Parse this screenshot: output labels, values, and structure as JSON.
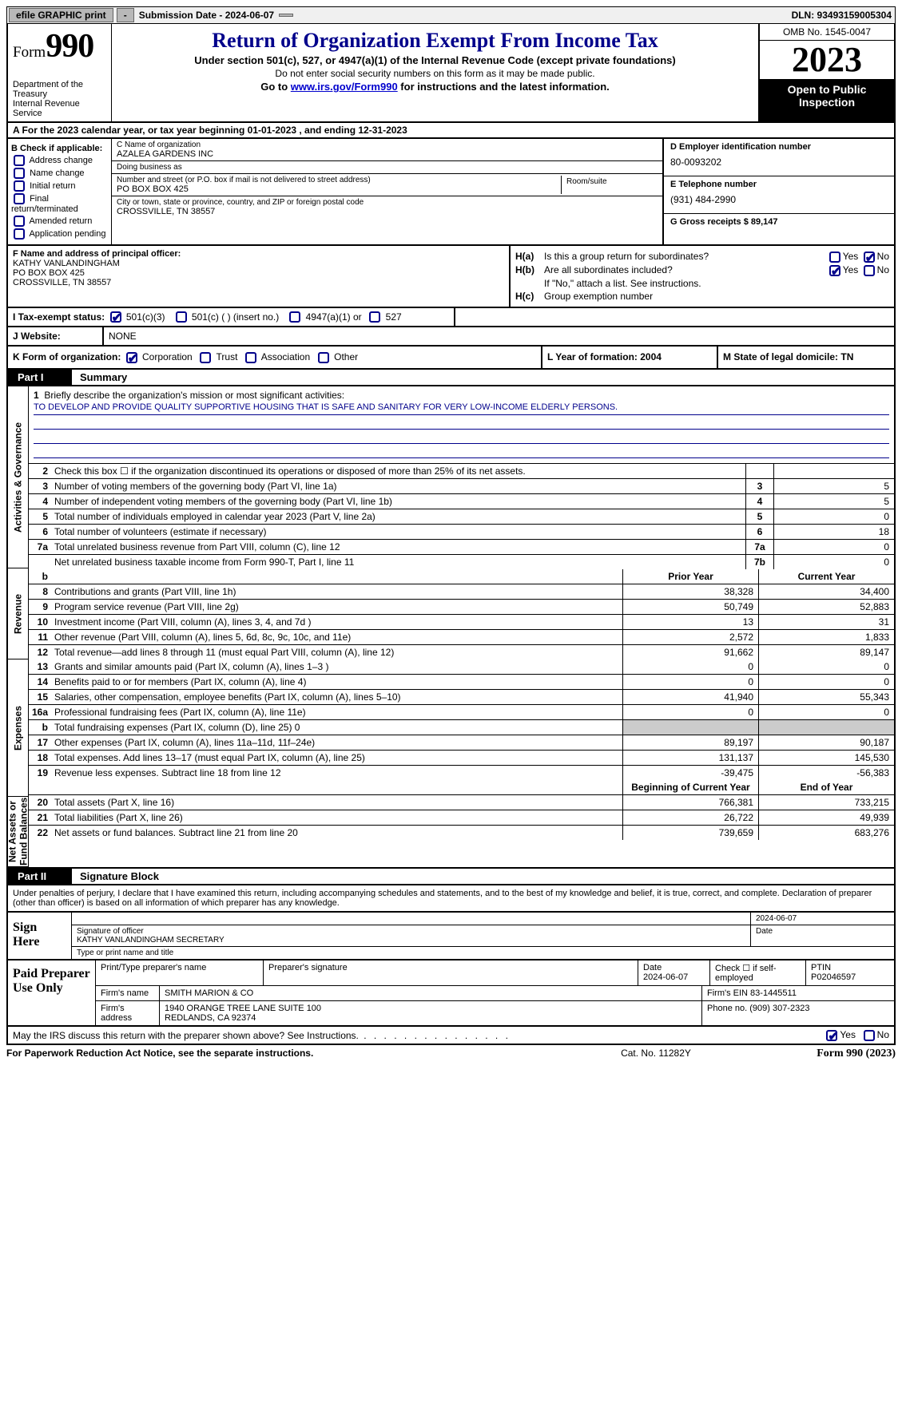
{
  "topbar": {
    "efile": "efile GRAPHIC print",
    "print": "-",
    "submission_label": "Submission Date - 2024-06-07",
    "dln_label": "DLN: 93493159005304"
  },
  "header": {
    "form_word": "Form",
    "form_no": "990",
    "dept": "Department of the Treasury",
    "irs": "Internal Revenue Service",
    "title": "Return of Organization Exempt From Income Tax",
    "sub": "Under section 501(c), 527, or 4947(a)(1) of the Internal Revenue Code (except private foundations)",
    "ssn": "Do not enter social security numbers on this form as it may be made public.",
    "goto_pre": "Go to ",
    "goto_link": "www.irs.gov/Form990",
    "goto_post": " for instructions and the latest information.",
    "omb": "OMB No. 1545-0047",
    "year": "2023",
    "inspection": "Open to Public Inspection"
  },
  "line_a": "A For the 2023 calendar year, or tax year beginning 01-01-2023     , and ending 12-31-2023",
  "box_b": {
    "hdr": "B Check if applicable:",
    "items": [
      "Address change",
      "Name change",
      "Initial return",
      "Final return/terminated",
      "Amended return",
      "Application pending"
    ]
  },
  "box_c": {
    "name_lbl": "C Name of organization",
    "name": "AZALEA GARDENS INC",
    "dba_lbl": "Doing business as",
    "dba": "",
    "addr_lbl": "Number and street (or P.O. box if mail is not delivered to street address)",
    "addr": "PO BOX BOX 425",
    "room_lbl": "Room/suite",
    "city_lbl": "City or town, state or province, country, and ZIP or foreign postal code",
    "city": "CROSSVILLE, TN  38557"
  },
  "box_d": {
    "ein_lbl": "D Employer identification number",
    "ein": "80-0093202",
    "tel_lbl": "E Telephone number",
    "tel": "(931) 484-2990",
    "gross_lbl": "G Gross receipts $ 89,147"
  },
  "box_f": {
    "lbl": "F  Name and address of principal officer:",
    "name": "KATHY VANLANDINGHAM",
    "addr": "PO BOX BOX 425",
    "city": "CROSSVILLE, TN  38557"
  },
  "box_h": {
    "ha_lbl": "H(a)",
    "ha_txt": "Is this a group return for subordinates?",
    "hb_lbl": "H(b)",
    "hb_txt": "Are all subordinates included?",
    "hb_note": "If \"No,\" attach a list. See instructions.",
    "hc_lbl": "H(c)",
    "hc_txt": "Group exemption number",
    "yes": "Yes",
    "no": "No"
  },
  "row_i": {
    "lbl": "I  Tax-exempt status:",
    "opts": [
      "501(c)(3)",
      "501(c) (  ) (insert no.)",
      "4947(a)(1) or",
      "527"
    ]
  },
  "row_j": {
    "lbl": "J  Website:",
    "val": "NONE"
  },
  "row_k": {
    "lbl": "K Form of organization:",
    "opts": [
      "Corporation",
      "Trust",
      "Association",
      "Other"
    ]
  },
  "row_l": {
    "lbl": "L Year of formation: 2004"
  },
  "row_m": {
    "lbl": "M State of legal domicile: TN"
  },
  "part1": {
    "tag": "Part I",
    "title": "Summary"
  },
  "vtab": {
    "gov": "Activities & Governance",
    "rev": "Revenue",
    "exp": "Expenses",
    "net": "Net Assets or Fund Balances"
  },
  "mission": {
    "n": "1",
    "lbl": "Briefly describe the organization's mission or most significant activities:",
    "txt": "TO DEVELOP AND PROVIDE QUALITY SUPPORTIVE HOUSING THAT IS SAFE AND SANITARY FOR VERY LOW-INCOME ELDERLY PERSONS."
  },
  "gov_rows": [
    {
      "n": "2",
      "d": "Check this box ☐ if the organization discontinued its operations or disposed of more than 25% of its net assets.",
      "b": "",
      "v": ""
    },
    {
      "n": "3",
      "d": "Number of voting members of the governing body (Part VI, line 1a)",
      "b": "3",
      "v": "5"
    },
    {
      "n": "4",
      "d": "Number of independent voting members of the governing body (Part VI, line 1b)",
      "b": "4",
      "v": "5"
    },
    {
      "n": "5",
      "d": "Total number of individuals employed in calendar year 2023 (Part V, line 2a)",
      "b": "5",
      "v": "0"
    },
    {
      "n": "6",
      "d": "Total number of volunteers (estimate if necessary)",
      "b": "6",
      "v": "18"
    },
    {
      "n": "7a",
      "d": "Total unrelated business revenue from Part VIII, column (C), line 12",
      "b": "7a",
      "v": "0"
    },
    {
      "n": "",
      "d": "Net unrelated business taxable income from Form 990-T, Part I, line 11",
      "b": "7b",
      "v": "0"
    }
  ],
  "col_hdr": {
    "py": "Prior Year",
    "cy": "Current Year"
  },
  "rev_rows": [
    {
      "n": "8",
      "d": "Contributions and grants (Part VIII, line 1h)",
      "py": "38,328",
      "cy": "34,400"
    },
    {
      "n": "9",
      "d": "Program service revenue (Part VIII, line 2g)",
      "py": "50,749",
      "cy": "52,883"
    },
    {
      "n": "10",
      "d": "Investment income (Part VIII, column (A), lines 3, 4, and 7d )",
      "py": "13",
      "cy": "31"
    },
    {
      "n": "11",
      "d": "Other revenue (Part VIII, column (A), lines 5, 6d, 8c, 9c, 10c, and 11e)",
      "py": "2,572",
      "cy": "1,833"
    },
    {
      "n": "12",
      "d": "Total revenue—add lines 8 through 11 (must equal Part VIII, column (A), line 12)",
      "py": "91,662",
      "cy": "89,147"
    }
  ],
  "exp_rows": [
    {
      "n": "13",
      "d": "Grants and similar amounts paid (Part IX, column (A), lines 1–3 )",
      "py": "0",
      "cy": "0"
    },
    {
      "n": "14",
      "d": "Benefits paid to or for members (Part IX, column (A), line 4)",
      "py": "0",
      "cy": "0"
    },
    {
      "n": "15",
      "d": "Salaries, other compensation, employee benefits (Part IX, column (A), lines 5–10)",
      "py": "41,940",
      "cy": "55,343"
    },
    {
      "n": "16a",
      "d": "Professional fundraising fees (Part IX, column (A), line 11e)",
      "py": "0",
      "cy": "0"
    },
    {
      "n": "b",
      "d": "Total fundraising expenses (Part IX, column (D), line 25) 0",
      "py": "GRAY",
      "cy": "GRAY"
    },
    {
      "n": "17",
      "d": "Other expenses (Part IX, column (A), lines 11a–11d, 11f–24e)",
      "py": "89,197",
      "cy": "90,187"
    },
    {
      "n": "18",
      "d": "Total expenses. Add lines 13–17 (must equal Part IX, column (A), line 25)",
      "py": "131,137",
      "cy": "145,530"
    },
    {
      "n": "19",
      "d": "Revenue less expenses. Subtract line 18 from line 12",
      "py": "-39,475",
      "cy": "-56,383"
    }
  ],
  "net_hdr": {
    "py": "Beginning of Current Year",
    "cy": "End of Year"
  },
  "net_rows": [
    {
      "n": "20",
      "d": "Total assets (Part X, line 16)",
      "py": "766,381",
      "cy": "733,215"
    },
    {
      "n": "21",
      "d": "Total liabilities (Part X, line 26)",
      "py": "26,722",
      "cy": "49,939"
    },
    {
      "n": "22",
      "d": "Net assets or fund balances. Subtract line 21 from line 20",
      "py": "739,659",
      "cy": "683,276"
    }
  ],
  "part2": {
    "tag": "Part II",
    "title": "Signature Block"
  },
  "perjury": "Under penalties of perjury, I declare that I have examined this return, including accompanying schedules and statements, and to the best of my knowledge and belief, it is true, correct, and complete. Declaration of preparer (other than officer) is based on all information of which preparer has any knowledge.",
  "sign": {
    "lbl": "Sign Here",
    "sig_lbl": "Signature of officer",
    "date_lbl": "Date",
    "date": "2024-06-07",
    "name": "KATHY VANLANDINGHAM  SECRETARY",
    "type_lbl": "Type or print name and title"
  },
  "prep": {
    "lbl": "Paid Preparer Use Only",
    "name_lbl": "Print/Type preparer's name",
    "sig_lbl": "Preparer's signature",
    "date_lbl": "Date",
    "date": "2024-06-07",
    "chk_lbl": "Check ☐ if self-employed",
    "ptin_lbl": "PTIN",
    "ptin": "P02046597",
    "firm_lbl": "Firm's name",
    "firm": "SMITH MARION & CO",
    "ein_lbl": "Firm's EIN",
    "ein": "83-1445511",
    "addr_lbl": "Firm's address",
    "addr1": "1940 ORANGE TREE LANE SUITE 100",
    "addr2": "REDLANDS, CA  92374",
    "phone_lbl": "Phone no.",
    "phone": "(909) 307-2323"
  },
  "discuss": {
    "txt": "May the IRS discuss this return with the preparer shown above? See Instructions.",
    "yes": "Yes",
    "no": "No"
  },
  "footer": {
    "left": "For Paperwork Reduction Act Notice, see the separate instructions.",
    "mid": "Cat. No. 11282Y",
    "right_pre": "Form ",
    "right_no": "990",
    "right_post": " (2023)"
  },
  "colors": {
    "link": "#0000cd",
    "navy": "#00008b",
    "gray": "#cccccc"
  }
}
